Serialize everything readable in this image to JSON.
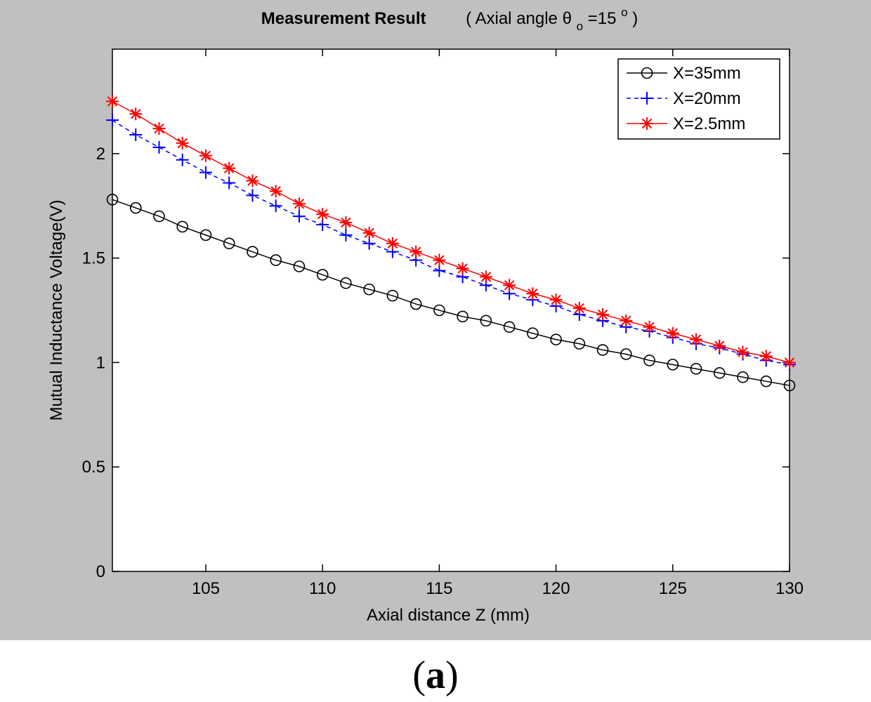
{
  "chart_data": {
    "type": "line",
    "title": "Measurement Result",
    "subtitle": {
      "prefix": "( Axial angle θ",
      "subscript": "o",
      "mid": "=15",
      "superscript": "o",
      "suffix": " )"
    },
    "xlabel": "Axial distance  Z (mm)",
    "ylabel": "Mutual Inductance Voltage(V)",
    "xlim": [
      101,
      130
    ],
    "ylim": [
      0,
      2.5
    ],
    "xticks": [
      105,
      110,
      115,
      120,
      125,
      130
    ],
    "xtick_labels": [
      "105",
      "110",
      "115",
      "120",
      "125",
      "130"
    ],
    "yticks": [
      0,
      0.5,
      1,
      1.5,
      2
    ],
    "ytick_labels": [
      "0",
      "0.5",
      "1",
      "1.5",
      "2"
    ],
    "grid": false,
    "legend_position": "top-right",
    "x": [
      101,
      102,
      103,
      104,
      105,
      106,
      107,
      108,
      109,
      110,
      111,
      112,
      113,
      114,
      115,
      116,
      117,
      118,
      119,
      120,
      121,
      122,
      123,
      124,
      125,
      126,
      127,
      128,
      129,
      130
    ],
    "series": [
      {
        "name": "X=35mm",
        "color": "#000000",
        "line_style": "solid",
        "marker": "circle",
        "values": [
          1.78,
          1.74,
          1.7,
          1.65,
          1.61,
          1.57,
          1.53,
          1.49,
          1.46,
          1.42,
          1.38,
          1.35,
          1.32,
          1.28,
          1.25,
          1.22,
          1.2,
          1.17,
          1.14,
          1.11,
          1.09,
          1.06,
          1.04,
          1.01,
          0.99,
          0.97,
          0.95,
          0.93,
          0.91,
          0.89
        ]
      },
      {
        "name": "X=20mm",
        "color": "#0000ff",
        "line_style": "dashed",
        "marker": "plus",
        "values": [
          2.16,
          2.09,
          2.03,
          1.97,
          1.91,
          1.86,
          1.8,
          1.75,
          1.7,
          1.66,
          1.61,
          1.57,
          1.53,
          1.49,
          1.44,
          1.41,
          1.37,
          1.33,
          1.3,
          1.27,
          1.23,
          1.2,
          1.17,
          1.15,
          1.12,
          1.09,
          1.07,
          1.04,
          1.01,
          0.99
        ]
      },
      {
        "name": "X=2.5mm",
        "color": "#ff0000",
        "line_style": "solid",
        "marker": "star",
        "values": [
          2.25,
          2.19,
          2.12,
          2.05,
          1.99,
          1.93,
          1.87,
          1.82,
          1.76,
          1.71,
          1.67,
          1.62,
          1.57,
          1.53,
          1.49,
          1.45,
          1.41,
          1.37,
          1.33,
          1.3,
          1.26,
          1.23,
          1.2,
          1.17,
          1.14,
          1.11,
          1.08,
          1.05,
          1.03,
          1.0
        ]
      }
    ]
  },
  "panel_label": {
    "open": "(",
    "letter": "a",
    "close": ")"
  }
}
